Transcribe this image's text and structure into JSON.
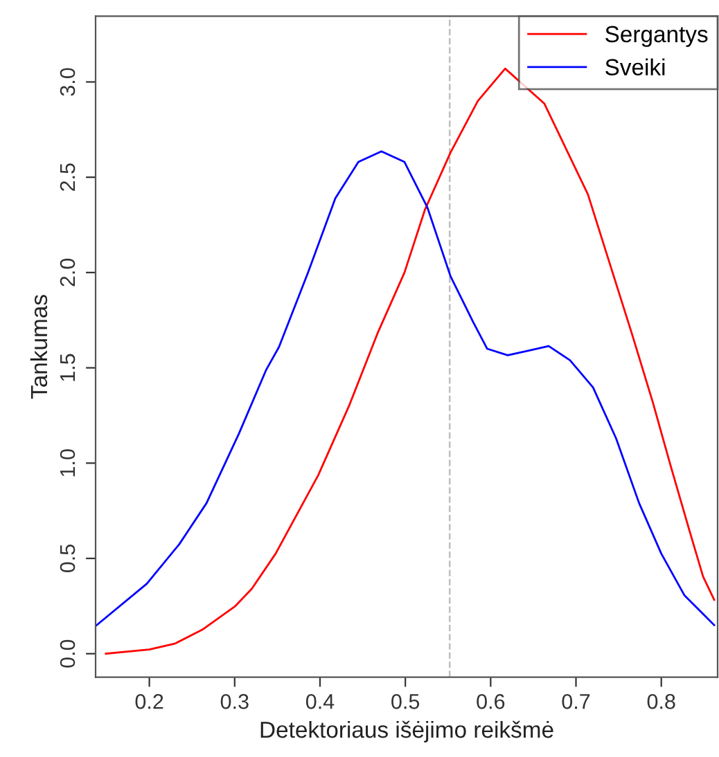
{
  "chart_data": {
    "type": "line",
    "xlabel": "Detektoriaus išėjimo reikšmė",
    "ylabel": "Tankumas",
    "xlim": [
      0.137,
      0.866
    ],
    "ylim": [
      -0.123,
      3.345
    ],
    "xticks": [
      0.2,
      0.3,
      0.4,
      0.5,
      0.6,
      0.7,
      0.8
    ],
    "yticks": [
      {
        "value": 0,
        "label": "0.0"
      },
      0.5,
      {
        "value": 1,
        "label": "1.0"
      },
      1.5,
      {
        "value": 2,
        "label": "2.0"
      },
      2.5,
      {
        "value": 3,
        "label": "3.0"
      }
    ],
    "grid": false,
    "legend": "top right",
    "marker": "none",
    "line_style": "solid",
    "ref_lines": [
      {
        "axis": "x",
        "value": 0.552,
        "color": "#bebebe",
        "line_style": "dashed"
      }
    ],
    "series": [
      {
        "name": "Sergantys",
        "color": "#ff0000",
        "x": [
          0.149,
          0.2,
          0.23,
          0.262,
          0.3,
          0.32,
          0.348,
          0.398,
          0.434,
          0.468,
          0.499,
          0.523,
          0.553,
          0.585,
          0.617,
          0.663,
          0.714,
          0.765,
          0.79,
          0.811,
          0.833,
          0.849,
          0.862
        ],
        "values": [
          0.0,
          0.022,
          0.053,
          0.126,
          0.247,
          0.34,
          0.525,
          0.937,
          1.3,
          1.687,
          2.0,
          2.33,
          2.63,
          2.9,
          3.07,
          2.886,
          2.41,
          1.687,
          1.32,
          0.985,
          0.646,
          0.404,
          0.283
        ]
      },
      {
        "name": "Sveiki",
        "color": "#0000ff",
        "x": [
          0.137,
          0.197,
          0.235,
          0.267,
          0.305,
          0.337,
          0.352,
          0.386,
          0.418,
          0.445,
          0.472,
          0.499,
          0.526,
          0.553,
          0.58,
          0.596,
          0.62,
          0.644,
          0.668,
          0.693,
          0.72,
          0.747,
          0.774,
          0.8,
          0.827,
          0.862
        ],
        "values": [
          0.145,
          0.367,
          0.574,
          0.79,
          1.155,
          1.49,
          1.61,
          2.0,
          2.39,
          2.58,
          2.636,
          2.58,
          2.34,
          1.98,
          1.736,
          1.6,
          1.566,
          1.59,
          1.614,
          1.54,
          1.397,
          1.13,
          0.79,
          0.525,
          0.307,
          0.15
        ]
      }
    ]
  }
}
